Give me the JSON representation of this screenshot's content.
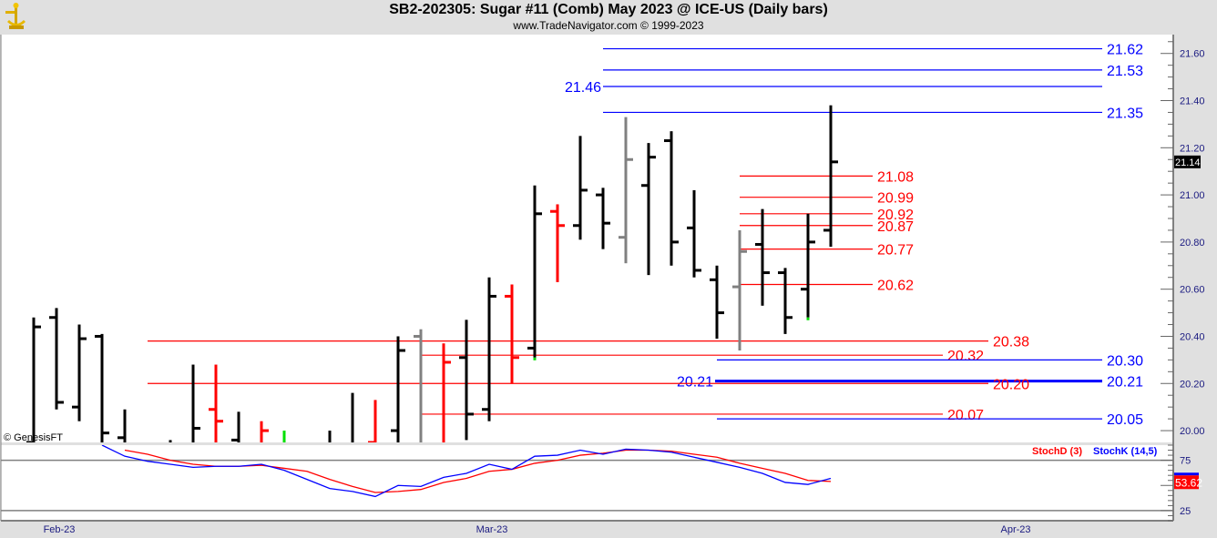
{
  "header": {
    "title": "SB2-202305:  Sugar #11 (Comb) May 2023 @ ICE-US  (Daily bars)",
    "subtitle": "www.TradeNavigator.com © 1999-2023",
    "logo_icon": "gold-sextant-logo"
  },
  "watermark": "© GenesisFT",
  "colors": {
    "up_bar": "#000000",
    "down_bar": "#ff0000",
    "neutral_bar": "#808080",
    "marker": "#00e000",
    "stochK": "#0000ff",
    "stochD": "#ff0000",
    "support_blue": "#0000ff",
    "resist_red": "#ff0000"
  },
  "chart_data": [
    {
      "type": "ohlc",
      "panel": "price",
      "ylim": [
        19.95,
        21.68
      ],
      "y_ticks": [
        "20.00",
        "20.20",
        "20.40",
        "20.60",
        "20.80",
        "21.00",
        "21.20",
        "21.40",
        "21.60"
      ],
      "x_tick_labels": [
        "Feb-23",
        "Mar-23",
        "Apr-23"
      ],
      "last_price_label": "21.14",
      "bars": [
        {
          "o": 19.95,
          "h": 20.48,
          "l": 19.9,
          "c": 20.44,
          "color": "black"
        },
        {
          "o": 20.48,
          "h": 20.52,
          "l": 20.09,
          "c": 20.12,
          "color": "black"
        },
        {
          "o": 20.1,
          "h": 20.45,
          "l": 20.04,
          "c": 20.39,
          "color": "black"
        },
        {
          "o": 20.4,
          "h": 20.41,
          "l": 19.9,
          "c": 19.99,
          "color": "black"
        },
        {
          "o": 19.97,
          "h": 20.09,
          "l": 19.9,
          "c": null,
          "color": "black"
        },
        null,
        {
          "o": null,
          "h": 19.96,
          "l": 19.9,
          "c": null,
          "color": "black"
        },
        {
          "o": null,
          "h": 20.28,
          "l": 19.9,
          "c": 20.01,
          "color": "black"
        },
        {
          "o": 20.09,
          "h": 20.28,
          "l": 19.9,
          "c": 20.04,
          "color": "red"
        },
        {
          "o": 19.96,
          "h": 20.08,
          "l": 19.9,
          "c": null,
          "color": "black"
        },
        {
          "o": null,
          "h": 20.04,
          "l": 19.9,
          "c": 20.0,
          "color": "red"
        },
        {
          "o": null,
          "h": 20.0,
          "l": 19.9,
          "c": null,
          "color": "green"
        },
        null,
        {
          "o": null,
          "h": 20.0,
          "l": 19.9,
          "c": null,
          "color": "black"
        },
        {
          "o": null,
          "h": 20.16,
          "l": 19.9,
          "c": null,
          "color": "black"
        },
        {
          "o": 19.95,
          "h": 20.13,
          "l": 19.9,
          "c": null,
          "color": "red"
        },
        {
          "o": 20.0,
          "h": 20.4,
          "l": 19.9,
          "c": 20.34,
          "color": "black"
        },
        {
          "o": 20.4,
          "h": 20.43,
          "l": 19.9,
          "c": null,
          "color": "gray"
        },
        {
          "o": null,
          "h": 20.37,
          "l": 19.9,
          "c": 20.29,
          "color": "red"
        },
        {
          "o": 20.31,
          "h": 20.47,
          "l": 19.96,
          "c": 20.07,
          "color": "black"
        },
        {
          "o": 20.09,
          "h": 20.65,
          "l": 20.04,
          "c": 20.57,
          "color": "black"
        },
        {
          "o": 20.57,
          "h": 20.62,
          "l": 20.2,
          "c": 20.31,
          "color": "red"
        },
        {
          "o": 20.35,
          "h": 21.04,
          "l": 20.31,
          "c": 20.92,
          "color": "black",
          "low_marker": true
        },
        {
          "o": 20.93,
          "h": 20.96,
          "l": 20.63,
          "c": 20.87,
          "color": "red"
        },
        {
          "o": 20.87,
          "h": 21.25,
          "l": 20.81,
          "c": 21.02,
          "color": "black"
        },
        {
          "o": 21.0,
          "h": 21.03,
          "l": 20.77,
          "c": 20.88,
          "color": "black"
        },
        {
          "o": 20.82,
          "h": 21.33,
          "l": 20.71,
          "c": 21.15,
          "color": "gray"
        },
        {
          "o": 21.04,
          "h": 21.22,
          "l": 20.66,
          "c": 21.16,
          "color": "black"
        },
        {
          "o": 21.23,
          "h": 21.27,
          "l": 20.7,
          "c": 20.8,
          "color": "black"
        },
        {
          "o": 20.86,
          "h": 21.02,
          "l": 20.65,
          "c": 20.68,
          "color": "black"
        },
        {
          "o": 20.64,
          "h": 20.7,
          "l": 20.39,
          "c": 20.5,
          "color": "black"
        },
        {
          "o": 20.61,
          "h": 20.85,
          "l": 20.34,
          "c": 20.76,
          "color": "gray"
        },
        {
          "o": 20.79,
          "h": 20.94,
          "l": 20.53,
          "c": 20.67,
          "color": "black"
        },
        {
          "o": 20.67,
          "h": 20.69,
          "l": 20.41,
          "c": 20.48,
          "color": "black"
        },
        {
          "o": 20.6,
          "h": 20.92,
          "l": 20.48,
          "c": 20.8,
          "color": "black",
          "low_marker": true
        },
        {
          "o": 20.85,
          "h": 21.38,
          "l": 20.78,
          "c": 21.14,
          "color": "black"
        }
      ],
      "levels": [
        {
          "value": 21.62,
          "label": "21.62",
          "color": "blue"
        },
        {
          "value": 21.53,
          "label": "21.53",
          "color": "blue"
        },
        {
          "value": 21.46,
          "label": "21.46",
          "color": "blue"
        },
        {
          "value": 21.35,
          "label": "21.35",
          "color": "blue"
        },
        {
          "value": 21.08,
          "label": "21.08",
          "color": "red"
        },
        {
          "value": 20.99,
          "label": "20.99",
          "color": "red"
        },
        {
          "value": 20.92,
          "label": "20.92",
          "color": "red"
        },
        {
          "value": 20.87,
          "label": "20.87",
          "color": "red"
        },
        {
          "value": 20.77,
          "label": "20.77",
          "color": "red"
        },
        {
          "value": 20.62,
          "label": "20.62",
          "color": "red"
        },
        {
          "value": 20.38,
          "label": "20.38",
          "color": "red"
        },
        {
          "value": 20.32,
          "label": "20.32",
          "color": "red"
        },
        {
          "value": 20.3,
          "label": "20.30",
          "color": "blue"
        },
        {
          "value": 20.21,
          "label": "20.21",
          "color": "blue"
        },
        {
          "value": 20.2,
          "label": "20.20",
          "color": "red"
        },
        {
          "value": 20.07,
          "label": "20.07",
          "color": "red"
        },
        {
          "value": 20.05,
          "label": "20.05",
          "color": "blue"
        }
      ]
    },
    {
      "type": "line",
      "panel": "stochastic",
      "ylim": [
        15,
        90
      ],
      "y_ticks": [
        "75",
        "25"
      ],
      "reference_lines": [
        75,
        25
      ],
      "last_value_label": "53.62",
      "series": [
        {
          "name": "StochD (3)",
          "color": "red",
          "values": [
            null,
            null,
            null,
            null,
            85,
            81,
            75,
            71,
            69,
            69,
            70,
            67,
            64,
            56,
            49,
            43,
            44,
            46,
            53,
            57,
            64,
            66,
            72,
            75,
            80,
            82,
            85,
            85,
            84,
            81,
            78,
            72,
            67,
            62,
            55,
            54
          ]
        },
        {
          "name": "StochK (14,5)",
          "color": "blue",
          "values": [
            null,
            null,
            null,
            90,
            79,
            74,
            71,
            68,
            69,
            69,
            71,
            65,
            56,
            47,
            44,
            39,
            50,
            49,
            58,
            62,
            71,
            66,
            79,
            80,
            85,
            81,
            86,
            85,
            83,
            78,
            73,
            68,
            62,
            53,
            51,
            57
          ]
        }
      ]
    }
  ]
}
